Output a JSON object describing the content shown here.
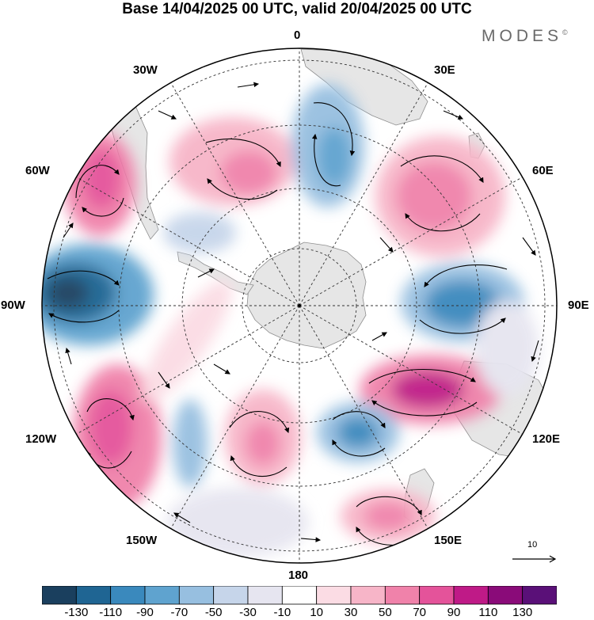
{
  "title": "Base 14/04/2025 00 UTC, valid 20/04/2025 00 UTC",
  "logo": {
    "text": "MODES",
    "mark": "©"
  },
  "longitude_labels": {
    "lon_0": "0",
    "lon_30e": "30E",
    "lon_60e": "60E",
    "lon_90e": "90E",
    "lon_120e": "120E",
    "lon_150e": "150E",
    "lon_180": "180",
    "lon_150w": "150W",
    "lon_120w": "120W",
    "lon_90w": "90W",
    "lon_60w": "60W",
    "lon_30w": "30W"
  },
  "reference_vector": {
    "label": "10"
  },
  "colorbar": {
    "labels": [
      "-130",
      "-110",
      "-90",
      "-70",
      "-50",
      "-30",
      "-10",
      "10",
      "30",
      "50",
      "70",
      "90",
      "110",
      "130"
    ],
    "colors": [
      "#1a3f5e",
      "#1f6593",
      "#3a89bd",
      "#5fa3cf",
      "#97bfe0",
      "#c6d5ea",
      "#e6e5f0",
      "#ffffff",
      "#fbdce4",
      "#f7b5c8",
      "#f082aa",
      "#e4539a",
      "#bf1a87",
      "#8a0b79",
      "#5a1078"
    ]
  },
  "map": {
    "projection": "south-polar-stereographic",
    "colors": {
      "land": "#e6e6e6",
      "coast": "#8f8f8f",
      "grid": "#333333"
    }
  }
}
